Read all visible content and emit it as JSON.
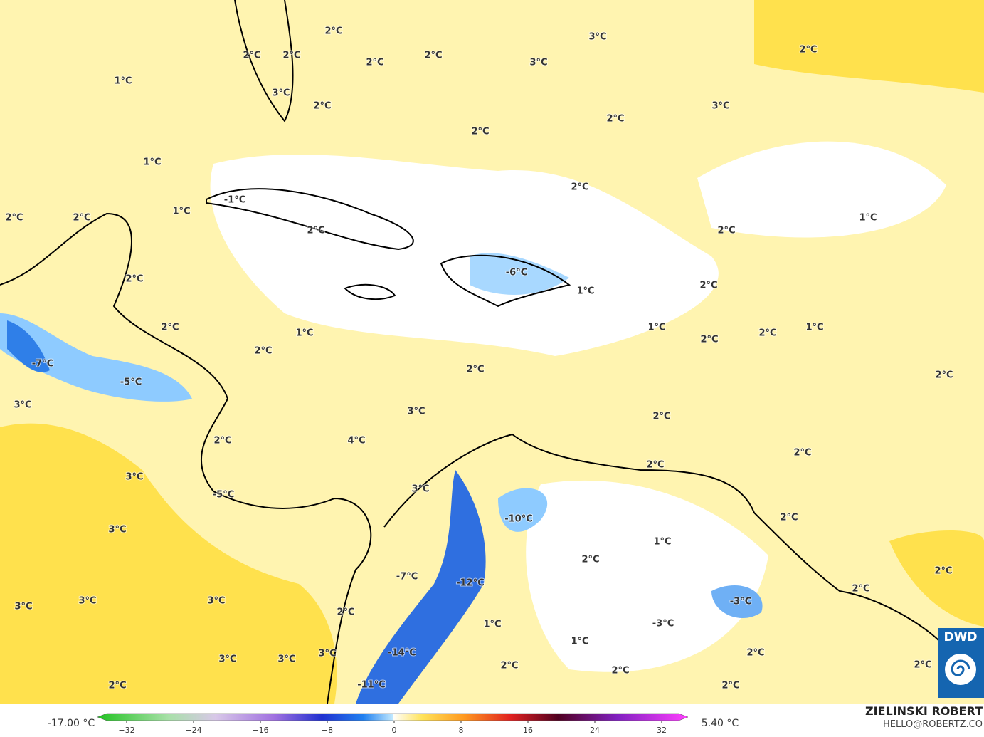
{
  "map": {
    "labels": [
      "2°C",
      "3°C",
      "2°C",
      "2°C",
      "2°C",
      "2°C",
      "2°C",
      "3°C",
      "1°C",
      "3°C",
      "2°C",
      "3°C",
      "2°C",
      "2°C",
      "1°C",
      "2°C",
      "-1°C",
      "1°C",
      "2°C",
      "2°C",
      "1°C",
      "2°C",
      "2°C",
      "-6°C",
      "2°C",
      "2°C",
      "1°C",
      "2°C",
      "1°C",
      "1°C",
      "1°C",
      "2°C",
      "2°C",
      "2°C",
      "-7°C",
      "2°C",
      "2°C",
      "-5°C",
      "3°C",
      "3°C",
      "2°C",
      "2°C",
      "4°C",
      "2°C",
      "2°C",
      "3°C",
      "3°C",
      "-5°C",
      "-10°C",
      "2°C",
      "3°C",
      "1°C",
      "2°C",
      "2°C",
      "-7°C",
      "-12°C",
      "3°C",
      "-3°C",
      "3°C",
      "3°C",
      "2°C",
      "2°C",
      "1°C",
      "-3°C",
      "1°C",
      "-14°C",
      "3°C",
      "3°C",
      "3°C",
      "2°C",
      "2°C",
      "2°C",
      "2°C",
      "2°C",
      "-11°C",
      "2°C"
    ]
  },
  "colorbar": {
    "min_label": "-17.00 °C",
    "max_label": "5.40 °C",
    "ticks": [
      "−32",
      "−24",
      "−16",
      "−8",
      "0",
      "8",
      "16",
      "24",
      "32"
    ]
  },
  "credit": {
    "author": "ZIELINSKI ROBERT",
    "email": "HELLO@ROBERTZ.CO",
    "logo": "DWD"
  }
}
